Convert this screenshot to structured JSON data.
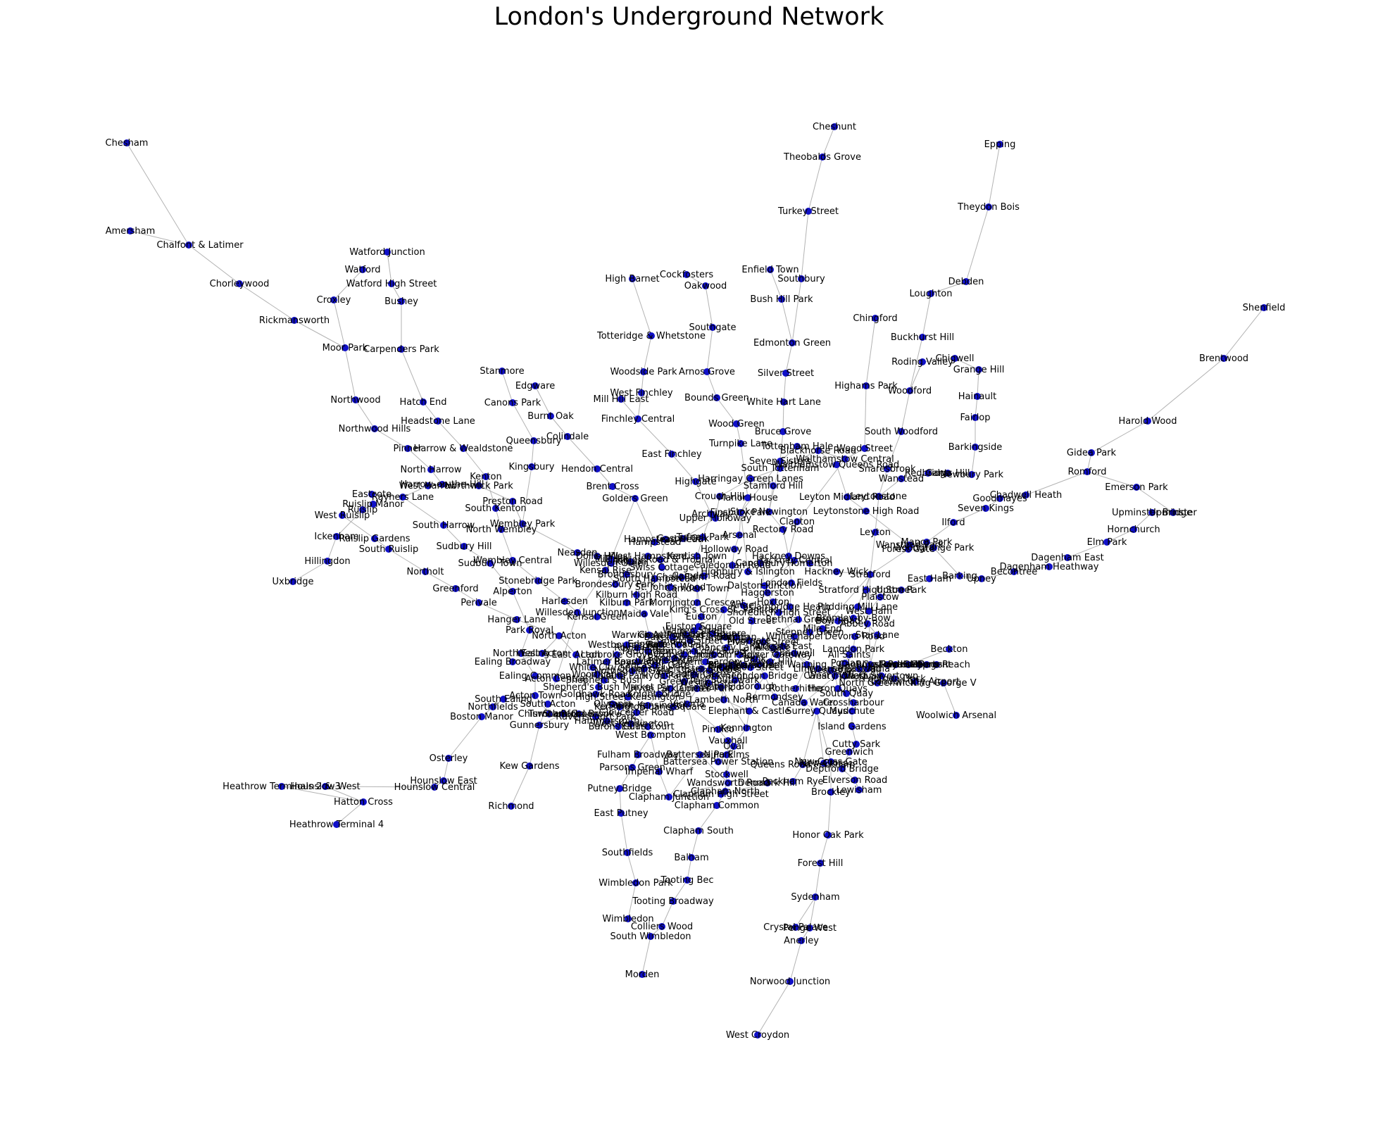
{
  "title": "London's Underground Network",
  "colors": {
    "node": "#1010c8",
    "edge": "#b3b3b3"
  },
  "stations": [
    "Chesham",
    "Amersham",
    "Chalfont & Latimer",
    "Chorleywood",
    "Rickmansworth",
    "Moor Park",
    "Croxley",
    "Watford",
    "Watford Junction",
    "Watford High Street",
    "Bushey",
    "Carpenders Park",
    "Hatch End",
    "Headstone Lane",
    "Harrow & Wealdstone",
    "Northwood",
    "Northwood Hills",
    "Pinner",
    "North Harrow",
    "Harrow-on-the-Hill",
    "West Harrow",
    "Kenton",
    "Northwick Park",
    "Preston Road",
    "South Kenton",
    "North Wembley",
    "Wembley Park",
    "Wembley Central",
    "Stanmore",
    "Canons Park",
    "Queensbury",
    "Kingsbury",
    "Edgware",
    "Burnt Oak",
    "Colindale",
    "Hendon Central",
    "Brent Cross",
    "Golders Green",
    "Hampstead",
    "Eastcote",
    "Rayners Lane",
    "Ruislip Manor",
    "Ruislip",
    "West Ruislip",
    "Ickenham",
    "Ruislip Gardens",
    "South Ruislip",
    "Hillingdon",
    "Uxbridge",
    "Northolt",
    "Greenford",
    "Perivale",
    "South Harrow",
    "Sudbury Hill",
    "Sudbury Town",
    "Alperton",
    "Stonebridge Park",
    "Harlesden",
    "Willesden Junction",
    "Kensal Green",
    "Hanger Lane",
    "Park Royal",
    "North Ealing",
    "West Acton",
    "North Acton",
    "East Acton",
    "Ealing Broadway",
    "Ealing Common",
    "Acton Central",
    "Acton Town",
    "South Ealing",
    "Northfields",
    "South Acton",
    "Boston Manor",
    "Osterley",
    "Hounslow East",
    "Hounslow West",
    "Hounslow Central",
    "Hatton Cross",
    "Heathrow Terminals 2 & 3",
    "Heathrow Terminal 4",
    "Chiswick Park",
    "Gunnersbury",
    "Kew Gardens",
    "Richmond",
    "Turnham Green",
    "Stamford Brook",
    "Ravenscourt Park",
    "Hammersmith",
    "Barons Court",
    "West Kensington",
    "Earl's Court",
    "West Brompton",
    "Fulham Broadway",
    "Parsons Green",
    "Putney Bridge",
    "East Putney",
    "Southfields",
    "Wimbledon Park",
    "Wimbledon",
    "High Barnet",
    "Totteridge & Whetstone",
    "Woodside Park",
    "West Finchley",
    "Mill Hill East",
    "Finchley Central",
    "East Finchley",
    "Highgate",
    "Archway",
    "Tufnell Park",
    "Kentish Town",
    "Camden Town",
    "Cockfosters",
    "Oakwood",
    "Southgate",
    "Arnos Grove",
    "Bounds Green",
    "Wood Green",
    "Turnpike Lane",
    "Manor House",
    "Finsbury Park",
    "Arsenal",
    "Holloway Road",
    "Caledonian Road",
    "King's Cross St. Pancras",
    "Euston",
    "Warren Street",
    "Goodge Street",
    "Tottenham Court Road",
    "Oxford Circus",
    "Bond Street",
    "Marble Arch",
    "Lancaster Gate",
    "Queensway",
    "Notting Hill Gate",
    "Holland Park",
    "Shepherd's Bush",
    "White City",
    "Kensington",
    "Latimer Road",
    "Ladbroke Grove",
    "Westbourne Park",
    "Royal Oak",
    "Paddington",
    "Edgware Road",
    "Baker Street",
    "Great Portland Street",
    "Euston Square",
    "Farringdon",
    "Barbican",
    "Moorgate",
    "Liverpool Street",
    "Aldgate",
    "Aldgate East",
    "Whitechapel",
    "Stepney Green",
    "Mile End",
    "Bow Road",
    "Bromley-by-Bow",
    "West Ham",
    "Plaistow",
    "Upton Park",
    "East Ham",
    "Barking",
    "Upney",
    "Becontree",
    "Dagenham Heathway",
    "Dagenham East",
    "Elm Park",
    "Hornchurch",
    "Upminster Bridge",
    "Upminster",
    "Cheshunt",
    "Theobalds Grove",
    "Turkey Street",
    "Southbury",
    "Enfield Town",
    "Bush Hill Park",
    "Edmonton Green",
    "Silver Street",
    "White Hart Lane",
    "Bruce Grove",
    "Seven Sisters",
    "Tottenham Hale",
    "Blackhorse Road",
    "Walthamstow Central",
    "Walthamstow Queens Road",
    "Wood Street",
    "Chingford",
    "Highams Park",
    "South Woodford",
    "Woodford",
    "Wanstead",
    "Leytonstone",
    "Leyton",
    "Stratford",
    "Snaresbrook",
    "Redbridge",
    "Gants Hill",
    "Newbury Park",
    "Barkingside",
    "Fairlop",
    "Hainault",
    "Grange Hill",
    "Chigwell",
    "Roding Valley",
    "Buckhurst Hill",
    "Loughton",
    "Debden",
    "Theydon Bois",
    "Epping",
    "Shenfield",
    "Brentwood",
    "Harold Wood",
    "Gidea Park",
    "Romford",
    "Chadwell Heath",
    "Goodmayes",
    "Seven Kings",
    "Ilford",
    "Manor Park",
    "Forest Gate",
    "Wanstead Park",
    "Woodgrange Park",
    "Emerson Park",
    "Leyton Midland Road",
    "Leytonstone High Road",
    "Clapton",
    "Rectory Road",
    "Stoke Newington",
    "Stamford Hill",
    "South Tottenham",
    "Harringay Green Lanes",
    "Crouch Hill",
    "Upper Holloway",
    "Gospel Oak",
    "Hampstead Heath",
    "Finchley Road & Frognal",
    "West Hampstead",
    "Brondesbury",
    "Brondesbury Park",
    "Kilburn High Road",
    "South Hampstead",
    "Kilburn Park",
    "Maida Vale",
    "Warwick Avenue",
    "Kensal Rise",
    "Willesden Green",
    "Dollis Hill",
    "Neasden",
    "Kilburn",
    "Swiss Cottage",
    "St. John's Wood",
    "Chalk Farm",
    "Mornington Crescent",
    "Camden Road",
    "Highbury & Islington",
    "Canonbury",
    "Dalston Junction",
    "Haggerston",
    "Hoxton",
    "Shoreditch High Street",
    "Hackney Central",
    "Hackney Downs",
    "Homerton",
    "Hackney Wick",
    "Bethnal Green",
    "Cambridge Heath",
    "London Fields",
    "Old Street",
    "Angel",
    "Bank",
    "St. Paul's",
    "Chancery Lane",
    "Holborn",
    "Covent Garden",
    "Leicester Square",
    "Piccadilly Circus",
    "Green Park",
    "Hyde Park Corner",
    "Knightsbridge",
    "South Kensington",
    "Gloucester Road",
    "High Street Kensington",
    "Victoria",
    "Sloane Square",
    "St. James's Park",
    "Westminster",
    "Embankment",
    "Charing Cross",
    "Temple",
    "Blackfriars",
    "Mansion House",
    "Cannon Street",
    "Monument",
    "Tower Hill",
    "Tower Gateway",
    "Shadwell",
    "Wapping",
    "Rotherhithe",
    "Canada Water",
    "Surrey Quays",
    "New Cross",
    "New Cross Gate",
    "Brockley",
    "Honor Oak Park",
    "Forest Hill",
    "Sydenham",
    "Crystal Palace",
    "Penge West",
    "Anerley",
    "Norwood Junction",
    "West Croydon",
    "Waterloo",
    "Lambeth North",
    "Elephant & Castle",
    "Kennington",
    "Oval",
    "Stockwell",
    "Clapham North",
    "Clapham Common",
    "Clapham South",
    "Balham",
    "Tooting Bec",
    "Tooting Broadway",
    "Colliers Wood",
    "South Wimbledon",
    "Morden",
    "Borough",
    "London Bridge",
    "Southwark",
    "Bermondsey",
    "Canary Wharf",
    "North Greenwich",
    "Canning Town",
    "Pimlico",
    "Vauxhall",
    "Nine Elms",
    "Battersea Power Station",
    "Battersea Park",
    "Imperial Wharf",
    "Clapham Junction",
    "Wandsworth Road",
    "Clapham High Street",
    "Denmark Hill",
    "Peckham Rye",
    "Queens Road Peckham",
    "Greenwich",
    "Cutty Sark",
    "Island Gardens",
    "Mudchute",
    "Crossharbour",
    "South Quay",
    "Heron Quays",
    "West India Quay",
    "Westferry",
    "Limehouse",
    "Poplar",
    "All Saints",
    "Langdon Park",
    "Devons Road",
    "Pudding Mill Lane",
    "Stratford High Street",
    "Abbey Road",
    "Star Lane",
    "West Silvertown",
    "Pontoon Dock",
    "London City Airport",
    "King George V",
    "Woolwich Arsenal",
    "Beckton",
    "Gallions Reach",
    "Custom House",
    "Royal Victoria",
    "Lewisham",
    "Elverson Road",
    "Deptford Bridge",
    "Goldhawk Road",
    "Shepherd's Bush Market",
    "Wood Lane",
    "Olympia",
    "Bayswater",
    "Hyde Park",
    "Russell Square",
    "Regent's Park",
    "Lancaster Gate",
    "Mill Hill",
    "Blackwall",
    "East India",
    "Royal Albert",
    "Prince Regent",
    "Cyprus"
  ]
}
